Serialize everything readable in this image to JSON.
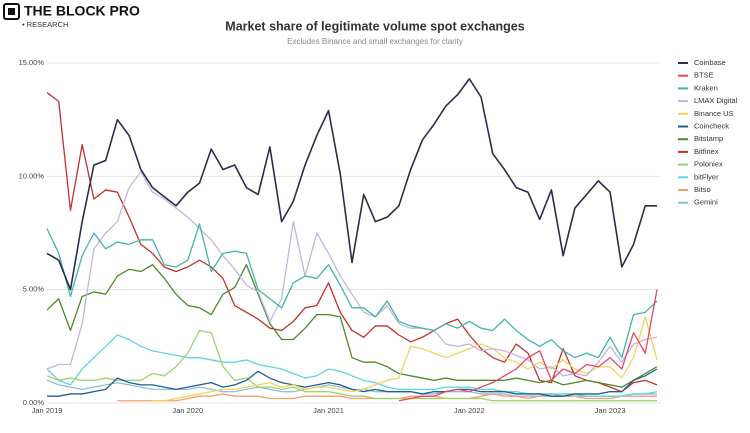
{
  "brand": {
    "name": "THE BLOCK PRO",
    "tag": "• RESEARCH"
  },
  "chart_data": {
    "type": "line",
    "title": "Market share of legitimate volume spot exchanges",
    "subtitle": "Excludes Binance and small exchanges for clarity",
    "categories": [
      "Jan 2019",
      null,
      null,
      null,
      null,
      null,
      null,
      null,
      null,
      null,
      null,
      null,
      "Jan 2020",
      null,
      null,
      null,
      null,
      null,
      null,
      null,
      null,
      null,
      null,
      null,
      "Jan 2021",
      null,
      null,
      null,
      null,
      null,
      null,
      null,
      null,
      null,
      null,
      null,
      "Jan 2022",
      null,
      null,
      null,
      null,
      null,
      null,
      null,
      null,
      null,
      null,
      null,
      "Jan 2023",
      null,
      null,
      null,
      null
    ],
    "ylim": [
      0,
      15
    ],
    "yticks": [
      {
        "value": 0,
        "label": "0.00%"
      },
      {
        "value": 5,
        "label": "5.00%"
      },
      {
        "value": 10,
        "label": "10.00%"
      },
      {
        "value": 15,
        "label": "15.00%"
      }
    ],
    "grid": true,
    "legend": "right",
    "series": [
      {
        "name": "Coinbase",
        "color": "#2b2d4f",
        "values": [
          6.6,
          6.3,
          5.0,
          8.0,
          10.5,
          10.7,
          12.5,
          11.8,
          10.3,
          9.5,
          9.1,
          8.7,
          9.3,
          9.7,
          11.2,
          10.3,
          10.5,
          9.5,
          9.2,
          11.3,
          8.0,
          8.9,
          10.5,
          11.8,
          12.9,
          10.1,
          6.2,
          9.2,
          8.0,
          8.2,
          8.7,
          10.3,
          11.6,
          12.3,
          13.1,
          13.6,
          14.3,
          13.5,
          11.0,
          10.3,
          9.5,
          9.3,
          8.1,
          9.4,
          6.5,
          8.6,
          9.2,
          9.8,
          9.3,
          6.0,
          7.0,
          8.7,
          8.7
        ]
      },
      {
        "name": "BTSE",
        "color": "#e8475f",
        "values": [
          null,
          null,
          null,
          null,
          null,
          null,
          null,
          null,
          null,
          null,
          null,
          null,
          null,
          null,
          null,
          null,
          null,
          null,
          null,
          null,
          null,
          null,
          null,
          null,
          null,
          null,
          null,
          null,
          null,
          null,
          0.1,
          0.2,
          0.3,
          0.3,
          0.5,
          0.6,
          0.5,
          0.7,
          0.9,
          1.2,
          1.5,
          2.0,
          2.3,
          1.0,
          1.5,
          1.3,
          1.7,
          1.6,
          2.0,
          1.5,
          3.1,
          2.2,
          5.0
        ]
      },
      {
        "name": "Kraken",
        "color": "#3fb6a8",
        "values": [
          7.7,
          6.6,
          4.7,
          6.5,
          7.5,
          6.8,
          7.1,
          7.0,
          7.2,
          7.2,
          6.1,
          6.0,
          6.3,
          7.9,
          5.8,
          6.6,
          6.7,
          6.6,
          5.0,
          4.6,
          4.2,
          5.3,
          5.6,
          5.5,
          6.1,
          5.2,
          4.2,
          4.2,
          3.8,
          4.5,
          3.6,
          3.4,
          3.3,
          3.2,
          3.5,
          3.3,
          3.6,
          3.3,
          3.2,
          3.7,
          3.2,
          2.8,
          2.5,
          2.8,
          2.3,
          2.0,
          2.2,
          2.0,
          2.9,
          2.0,
          3.9,
          4.0,
          4.5
        ]
      },
      {
        "name": "LMAX Digital",
        "color": "#c3b5e0",
        "values": [
          1.5,
          1.7,
          1.7,
          3.5,
          6.8,
          7.5,
          8.0,
          9.5,
          10.2,
          9.3,
          9.0,
          8.6,
          8.2,
          7.7,
          7.2,
          6.5,
          5.9,
          5.2,
          4.9,
          3.6,
          4.6,
          8.0,
          5.6,
          7.5,
          6.6,
          5.6,
          4.8,
          4.0,
          3.8,
          4.3,
          3.5,
          3.3,
          3.3,
          3.2,
          2.6,
          2.5,
          2.6,
          2.3,
          2.4,
          2.3,
          2.1,
          1.9,
          1.5,
          1.6,
          1.2,
          1.3,
          1.2,
          1.8,
          2.5,
          1.8,
          2.6,
          2.8,
          2.9
        ]
      },
      {
        "name": "Binance US",
        "color": "#f2d45c",
        "values": [
          null,
          null,
          null,
          null,
          null,
          null,
          null,
          null,
          null,
          0.1,
          0.1,
          0.2,
          0.3,
          0.4,
          0.5,
          0.6,
          0.6,
          0.7,
          0.8,
          0.9,
          0.7,
          0.8,
          0.6,
          0.7,
          0.7,
          0.6,
          0.5,
          0.6,
          0.8,
          1.0,
          1.1,
          2.5,
          2.4,
          2.2,
          2.0,
          2.2,
          2.4,
          2.6,
          2.4,
          2.0,
          1.8,
          1.5,
          1.8,
          1.5,
          1.9,
          1.5,
          1.3,
          1.6,
          1.6,
          1.1,
          2.0,
          3.8,
          1.9
        ]
      },
      {
        "name": "Coincheck",
        "color": "#1e5f8c",
        "values": [
          0.3,
          0.3,
          0.4,
          0.4,
          0.5,
          0.6,
          1.1,
          0.9,
          0.8,
          0.8,
          0.7,
          0.6,
          0.7,
          0.8,
          0.9,
          0.7,
          0.8,
          1.0,
          1.4,
          1.1,
          0.9,
          0.8,
          0.7,
          0.8,
          0.9,
          0.8,
          0.6,
          0.5,
          0.6,
          0.5,
          0.5,
          0.5,
          0.4,
          0.5,
          0.5,
          0.6,
          0.6,
          0.5,
          0.5,
          0.5,
          0.4,
          0.4,
          0.4,
          0.3,
          0.3,
          0.4,
          0.4,
          0.4,
          0.5,
          0.5,
          1.0,
          1.2,
          1.5
        ]
      },
      {
        "name": "Bitstamp",
        "color": "#4a8a2a",
        "values": [
          4.1,
          4.6,
          3.2,
          4.7,
          4.9,
          4.8,
          5.6,
          5.9,
          5.8,
          6.1,
          5.5,
          4.8,
          4.3,
          4.2,
          3.9,
          4.8,
          5.1,
          6.1,
          4.8,
          3.5,
          2.8,
          2.8,
          3.3,
          3.9,
          3.9,
          3.8,
          2.0,
          1.8,
          1.8,
          1.6,
          1.3,
          1.2,
          1.1,
          1.0,
          1.1,
          1.0,
          1.0,
          1.0,
          1.0,
          1.0,
          1.1,
          1.0,
          0.9,
          1.0,
          0.8,
          0.9,
          1.0,
          0.9,
          0.8,
          0.7,
          1.0,
          1.3,
          1.6
        ]
      },
      {
        "name": "Bitfinex",
        "color": "#c4302b",
        "values": [
          13.7,
          13.3,
          8.5,
          11.4,
          9.0,
          9.4,
          9.3,
          8.2,
          7.0,
          6.6,
          6.0,
          5.8,
          6.0,
          6.3,
          6.0,
          5.5,
          4.3,
          4.0,
          3.7,
          3.3,
          3.2,
          3.6,
          4.2,
          4.3,
          5.3,
          4.0,
          3.2,
          2.9,
          3.4,
          3.4,
          3.0,
          2.7,
          2.9,
          3.2,
          3.5,
          3.7,
          3.0,
          2.4,
          2.0,
          1.8,
          2.6,
          2.2,
          1.0,
          0.9,
          2.4,
          1.2,
          1.0,
          0.9,
          0.7,
          0.5,
          0.9,
          1.0,
          0.8
        ]
      },
      {
        "name": "Poloniex",
        "color": "#9ad56a",
        "values": [
          1.2,
          1.0,
          1.1,
          1.0,
          1.0,
          1.1,
          1.0,
          1.0,
          1.0,
          1.3,
          1.2,
          1.6,
          2.2,
          3.2,
          3.1,
          1.6,
          1.0,
          1.1,
          0.7,
          0.7,
          0.6,
          0.7,
          0.5,
          0.5,
          0.5,
          0.4,
          0.3,
          0.3,
          0.2,
          0.2,
          0.2,
          0.2,
          0.2,
          0.2,
          0.2,
          0.2,
          0.2,
          0.2,
          0.1,
          0.1,
          0.1,
          0.1,
          0.1,
          0.1,
          0.1,
          0.1,
          0.1,
          0.1,
          0.1,
          0.1,
          0.1,
          0.1,
          0.1
        ]
      },
      {
        "name": "bitFlyer",
        "color": "#5fd3e0",
        "values": [
          1.5,
          1.0,
          0.8,
          1.5,
          2.0,
          2.5,
          3.0,
          2.8,
          2.5,
          2.3,
          2.2,
          2.1,
          2.0,
          2.0,
          1.9,
          1.8,
          1.8,
          1.9,
          1.7,
          1.6,
          1.5,
          1.3,
          1.1,
          1.2,
          1.5,
          1.4,
          1.2,
          1.0,
          0.9,
          0.7,
          0.6,
          0.6,
          0.6,
          0.6,
          0.7,
          0.7,
          0.7,
          0.6,
          0.6,
          0.5,
          0.5,
          0.4,
          0.4,
          0.4,
          0.4,
          0.4,
          0.3,
          0.3,
          0.3,
          0.3,
          0.4,
          0.4,
          0.5
        ]
      },
      {
        "name": "Bitso",
        "color": "#f3a06b",
        "values": [
          null,
          null,
          null,
          null,
          null,
          null,
          0.1,
          0.1,
          0.1,
          0.1,
          0.1,
          0.1,
          0.2,
          0.3,
          0.3,
          0.4,
          0.3,
          0.3,
          0.3,
          0.2,
          0.2,
          0.2,
          0.3,
          0.3,
          0.3,
          0.3,
          0.2,
          0.2,
          0.2,
          0.2,
          0.2,
          0.3,
          0.3,
          0.3,
          0.2,
          0.2,
          0.2,
          0.3,
          0.4,
          0.3,
          0.3,
          0.2,
          0.3,
          0.4,
          0.3,
          0.3,
          0.2,
          0.2,
          0.2,
          0.3,
          0.3,
          0.3,
          0.3
        ]
      },
      {
        "name": "Gemini",
        "color": "#8fbde0",
        "values": [
          1.0,
          0.8,
          0.7,
          0.6,
          0.7,
          0.8,
          0.9,
          0.8,
          0.7,
          0.6,
          0.6,
          0.6,
          0.6,
          0.7,
          0.6,
          0.5,
          0.5,
          0.6,
          0.7,
          0.6,
          0.5,
          0.5,
          0.6,
          0.7,
          0.8,
          0.7,
          0.6,
          0.6,
          0.5,
          0.5,
          0.5,
          0.5,
          0.4,
          0.4,
          0.5,
          0.5,
          0.5,
          0.4,
          0.4,
          0.4,
          0.3,
          0.3,
          0.3,
          0.3,
          0.3,
          0.3,
          0.3,
          0.3,
          0.3,
          0.3,
          0.4,
          0.4,
          0.4
        ]
      }
    ]
  }
}
